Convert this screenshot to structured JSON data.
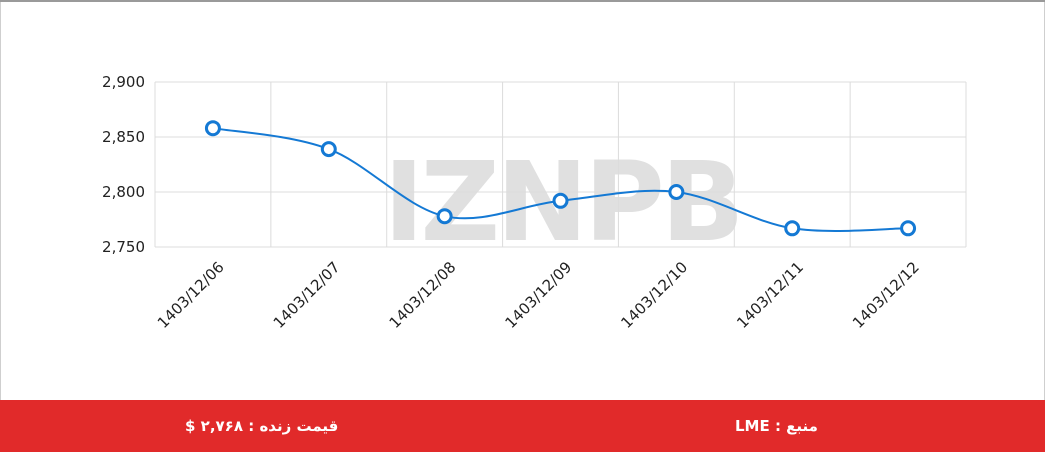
{
  "chart_data": {
    "type": "line",
    "categories": [
      "1403/12/06",
      "1403/12/07",
      "1403/12/08",
      "1403/12/09",
      "1403/12/10",
      "1403/12/11",
      "1403/12/12"
    ],
    "values": [
      2858,
      2839,
      2778,
      2792,
      2800,
      2767,
      2767
    ],
    "color": "#1479d4",
    "ylim": [
      2750,
      2900
    ],
    "yticks": [
      {
        "value": 2750,
        "label": "2,750"
      },
      {
        "value": 2800,
        "label": "2,800"
      },
      {
        "value": 2850,
        "label": "2,850"
      },
      {
        "value": 2900,
        "label": "2,900"
      }
    ],
    "grid": true,
    "watermark": "IZNPB"
  },
  "footer": {
    "live_price": "قیمت زنده : ۲,۷۶۸ $",
    "source": "منبع : LME"
  }
}
